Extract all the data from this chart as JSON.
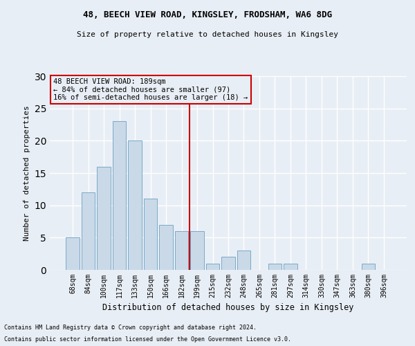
{
  "title1": "48, BEECH VIEW ROAD, KINGSLEY, FRODSHAM, WA6 8DG",
  "title2": "Size of property relative to detached houses in Kingsley",
  "xlabel": "Distribution of detached houses by size in Kingsley",
  "ylabel": "Number of detached properties",
  "categories": [
    "68sqm",
    "84sqm",
    "100sqm",
    "117sqm",
    "133sqm",
    "150sqm",
    "166sqm",
    "182sqm",
    "199sqm",
    "215sqm",
    "232sqm",
    "248sqm",
    "265sqm",
    "281sqm",
    "297sqm",
    "314sqm",
    "330sqm",
    "347sqm",
    "363sqm",
    "380sqm",
    "396sqm"
  ],
  "values": [
    5,
    12,
    16,
    23,
    20,
    11,
    7,
    6,
    6,
    1,
    2,
    3,
    0,
    1,
    1,
    0,
    0,
    0,
    0,
    1,
    0
  ],
  "bar_color": "#c9d9e8",
  "bar_edge_color": "#7aaac8",
  "vline_x": 8.0,
  "vline_color": "#cc0000",
  "annotation_title": "48 BEECH VIEW ROAD: 189sqm",
  "annotation_line2": "← 84% of detached houses are smaller (97)",
  "annotation_line3": "16% of semi-detached houses are larger (18) →",
  "annotation_box_color": "#cc0000",
  "ylim": [
    0,
    30
  ],
  "yticks": [
    0,
    5,
    10,
    15,
    20,
    25,
    30
  ],
  "footnote1": "Contains HM Land Registry data © Crown copyright and database right 2024.",
  "footnote2": "Contains public sector information licensed under the Open Government Licence v3.0.",
  "bg_color": "#e8eef5",
  "grid_color": "#ffffff"
}
